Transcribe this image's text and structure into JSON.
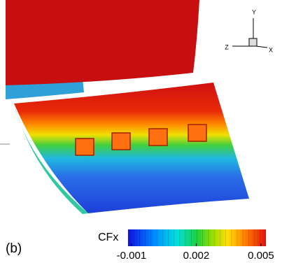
{
  "panel_label": "(b)",
  "axes_triad": {
    "y": "Y",
    "z": "Z",
    "x": "X"
  },
  "colorbar": {
    "title": "CFx",
    "range": [
      -0.00116,
      0.00523
    ],
    "ticks": [
      -0.001,
      0.002,
      0.005
    ]
  }
}
